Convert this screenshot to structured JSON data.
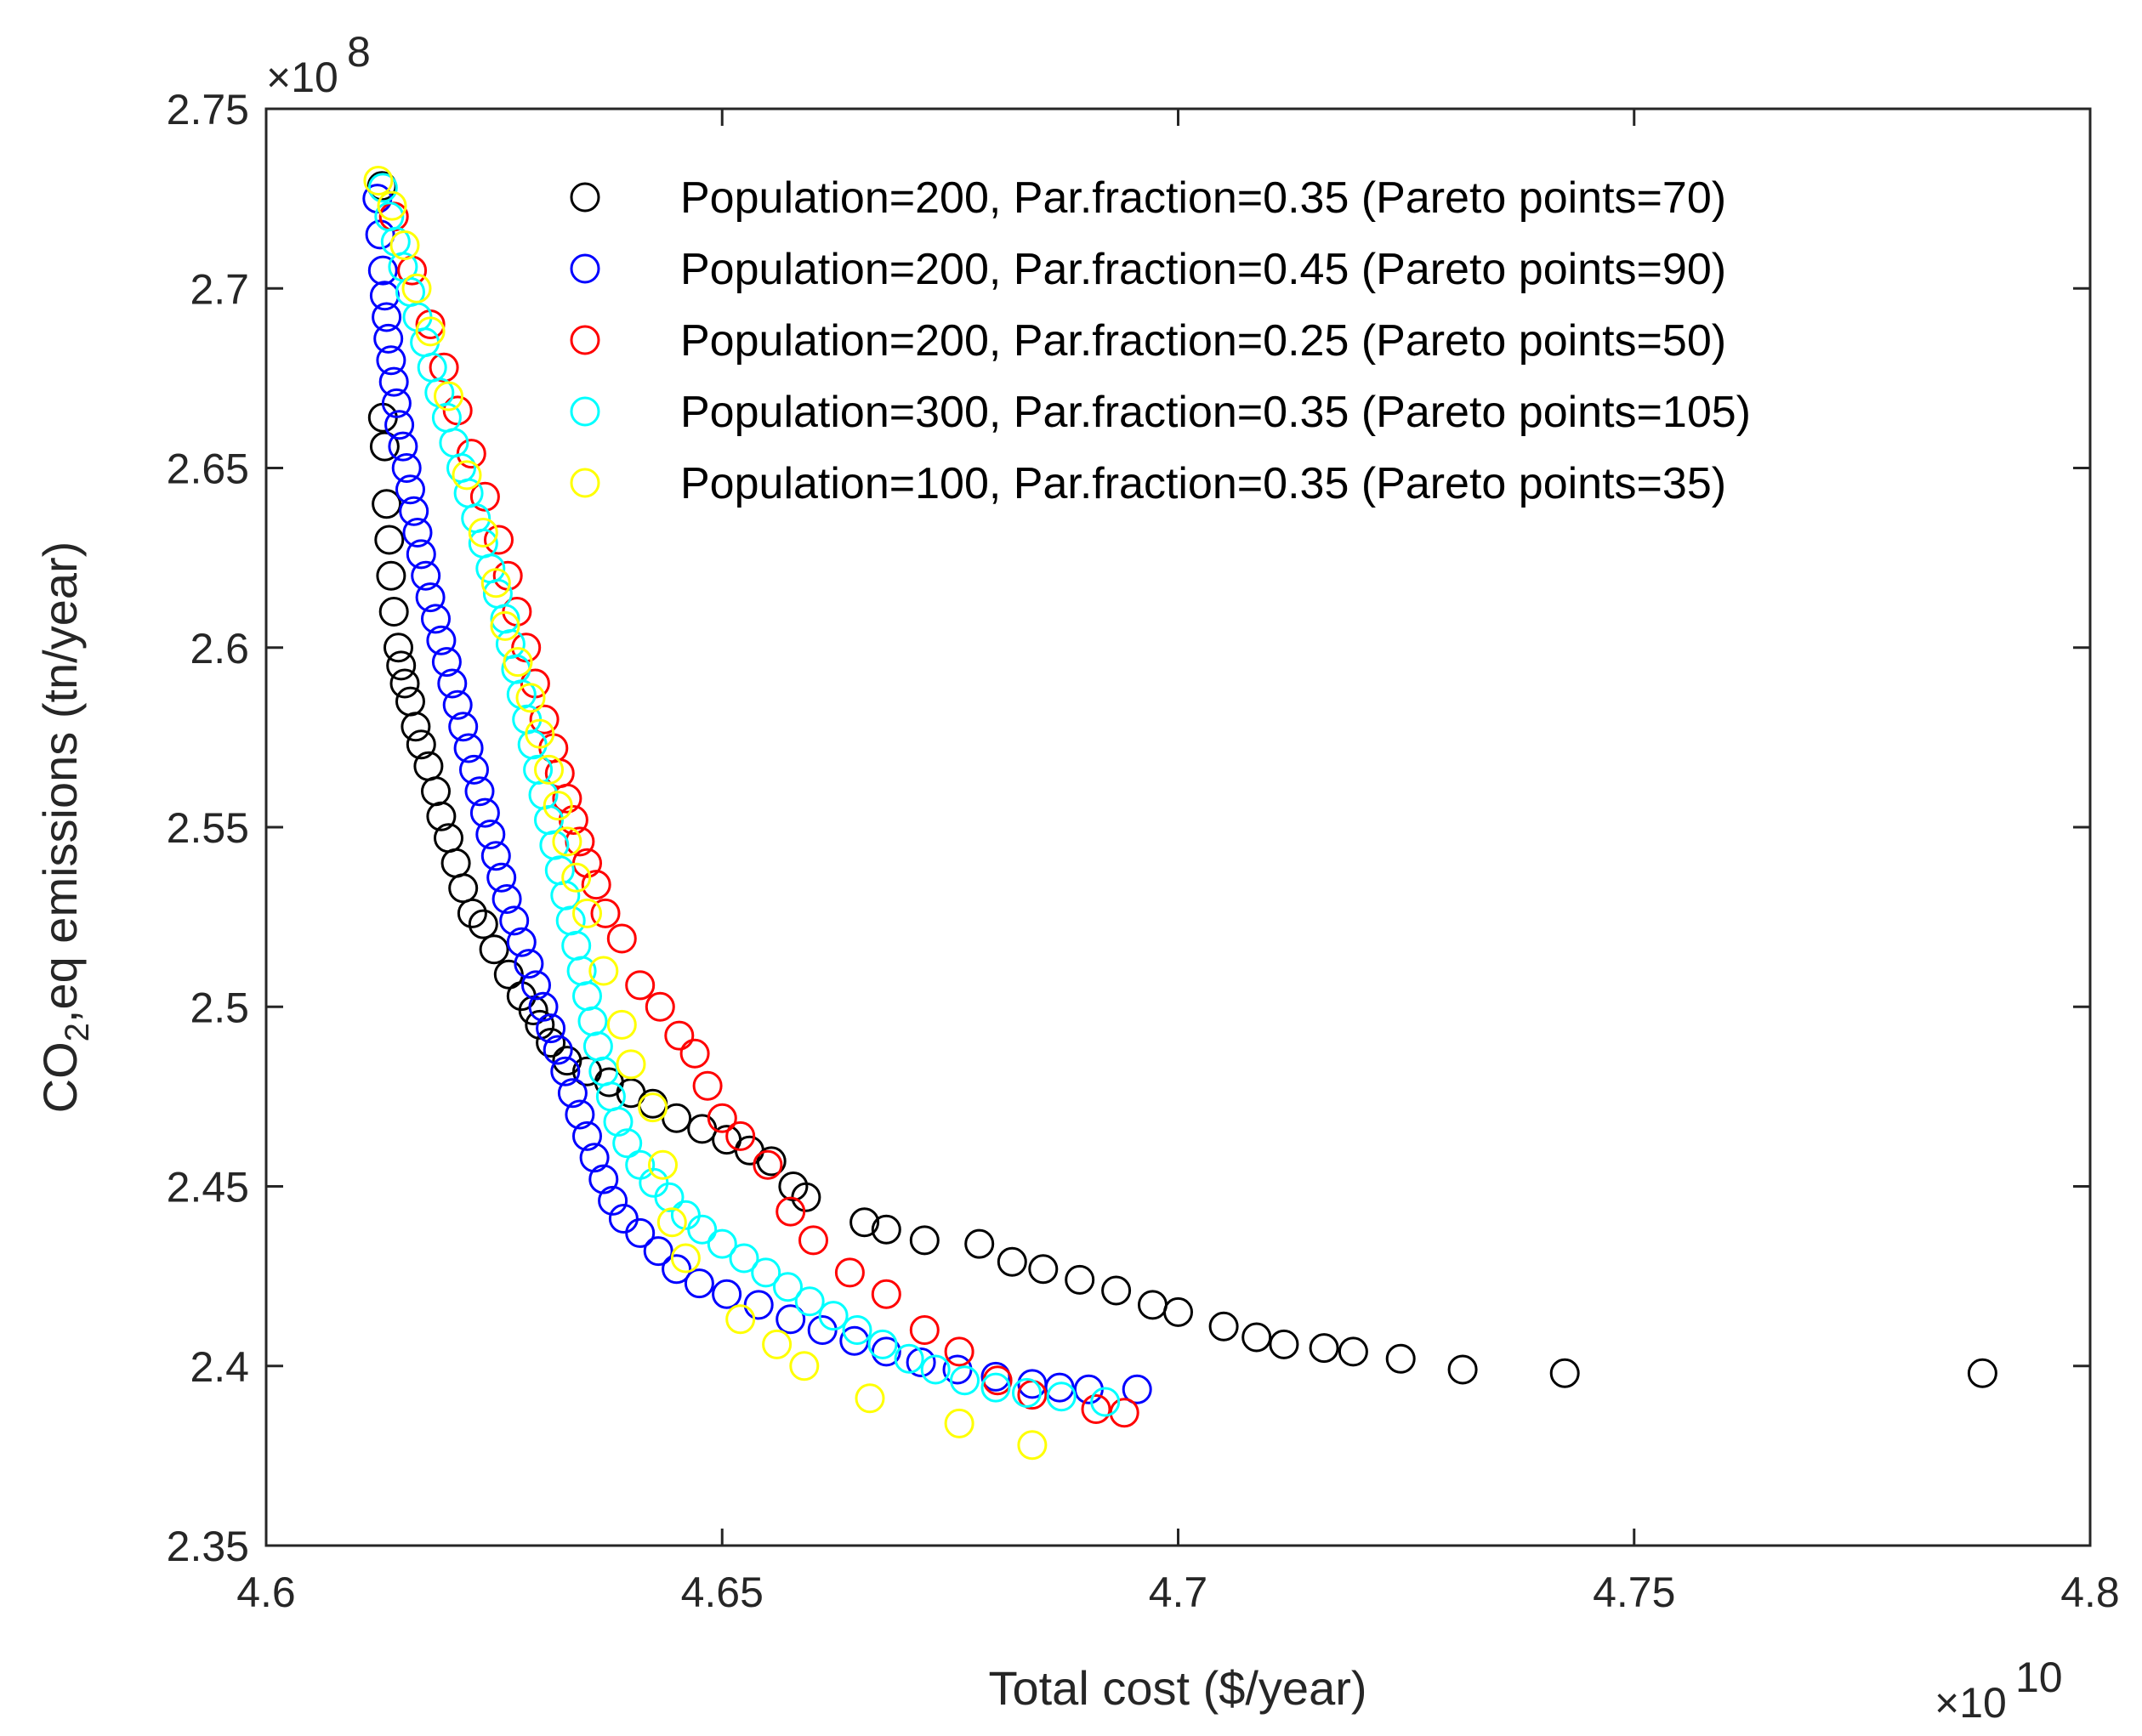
{
  "chart_data": {
    "type": "scatter",
    "title": "",
    "xlabel": "Total cost ($/year)",
    "ylabel_main": "CO",
    "ylabel_sub": "2",
    "ylabel_rest": ",eq emissions (tn/year)",
    "x_multiplier": {
      "base": "×10",
      "exp": "10"
    },
    "y_multiplier": {
      "base": "×10",
      "exp": "8"
    },
    "xlim": [
      4.6,
      4.8
    ],
    "ylim": [
      2.35,
      2.75
    ],
    "x_ticks": [
      4.6,
      4.65,
      4.7,
      4.75,
      4.8
    ],
    "x_tick_labels": [
      "4.6",
      "4.65",
      "4.7",
      "4.75",
      "4.8"
    ],
    "y_ticks": [
      2.35,
      2.4,
      2.45,
      2.5,
      2.55,
      2.6,
      2.65,
      2.7,
      2.75
    ],
    "y_tick_labels": [
      "2.35",
      "2.4",
      "2.45",
      "2.5",
      "2.55",
      "2.6",
      "2.65",
      "2.7",
      "2.75"
    ],
    "legend_position": "top-right",
    "series": [
      {
        "name": "Population=200, Par.fraction=0.35 (Pareto points=70)",
        "color": "#000000",
        "points": [
          [
            4.6127,
            2.7285
          ],
          [
            4.6128,
            2.664
          ],
          [
            4.613,
            2.656
          ],
          [
            4.6132,
            2.64
          ],
          [
            4.6135,
            2.63
          ],
          [
            4.6137,
            2.62
          ],
          [
            4.614,
            2.61
          ],
          [
            4.6145,
            2.6
          ],
          [
            4.6148,
            2.595
          ],
          [
            4.6152,
            2.59
          ],
          [
            4.6158,
            2.585
          ],
          [
            4.6164,
            2.578
          ],
          [
            4.617,
            2.573
          ],
          [
            4.6178,
            2.567
          ],
          [
            4.6186,
            2.56
          ],
          [
            4.6192,
            2.553
          ],
          [
            4.62,
            2.547
          ],
          [
            4.6208,
            2.54
          ],
          [
            4.6216,
            2.533
          ],
          [
            4.6226,
            2.526
          ],
          [
            4.6238,
            2.523
          ],
          [
            4.625,
            2.516
          ],
          [
            4.6266,
            2.509
          ],
          [
            4.628,
            2.503
          ],
          [
            4.6293,
            2.499
          ],
          [
            4.63,
            2.495
          ],
          [
            4.6312,
            2.49
          ],
          [
            4.633,
            2.485
          ],
          [
            4.6352,
            2.482
          ],
          [
            4.6376,
            2.479
          ],
          [
            4.64,
            2.476
          ],
          [
            4.6424,
            2.473
          ],
          [
            4.645,
            2.469
          ],
          [
            4.6478,
            2.466
          ],
          [
            4.6505,
            2.463
          ],
          [
            4.653,
            2.46
          ],
          [
            4.6554,
            2.457
          ],
          [
            4.6578,
            2.45
          ],
          [
            4.6592,
            2.447
          ],
          [
            4.6656,
            2.44
          ],
          [
            4.668,
            2.438
          ],
          [
            4.6722,
            2.435
          ],
          [
            4.6782,
            2.434
          ],
          [
            4.6818,
            2.429
          ],
          [
            4.6852,
            2.427
          ],
          [
            4.6892,
            2.424
          ],
          [
            4.6932,
            2.421
          ],
          [
            4.6972,
            2.417
          ],
          [
            4.7,
            2.415
          ],
          [
            4.705,
            2.411
          ],
          [
            4.7086,
            2.408
          ],
          [
            4.7116,
            2.406
          ],
          [
            4.716,
            2.405
          ],
          [
            4.7192,
            2.404
          ],
          [
            4.7244,
            2.402
          ],
          [
            4.7312,
            2.399
          ],
          [
            4.7424,
            2.398
          ],
          [
            4.7882,
            2.398
          ]
        ]
      },
      {
        "name": "Population=200, Par.fraction=0.45 (Pareto points=90)",
        "color": "#0000ff",
        "points": [
          [
            4.6122,
            2.725
          ],
          [
            4.6125,
            2.715
          ],
          [
            4.6128,
            2.705
          ],
          [
            4.613,
            2.698
          ],
          [
            4.6132,
            2.692
          ],
          [
            4.6134,
            2.686
          ],
          [
            4.6137,
            2.68
          ],
          [
            4.614,
            2.674
          ],
          [
            4.6143,
            2.668
          ],
          [
            4.6146,
            2.662
          ],
          [
            4.615,
            2.656
          ],
          [
            4.6154,
            2.65
          ],
          [
            4.6158,
            2.644
          ],
          [
            4.6162,
            2.638
          ],
          [
            4.6166,
            2.632
          ],
          [
            4.617,
            2.626
          ],
          [
            4.6175,
            2.62
          ],
          [
            4.618,
            2.614
          ],
          [
            4.6186,
            2.608
          ],
          [
            4.6192,
            2.602
          ],
          [
            4.6198,
            2.596
          ],
          [
            4.6204,
            2.59
          ],
          [
            4.621,
            2.584
          ],
          [
            4.6216,
            2.578
          ],
          [
            4.6222,
            2.572
          ],
          [
            4.6228,
            2.566
          ],
          [
            4.6234,
            2.56
          ],
          [
            4.624,
            2.554
          ],
          [
            4.6246,
            2.548
          ],
          [
            4.6252,
            2.542
          ],
          [
            4.6258,
            2.536
          ],
          [
            4.6264,
            2.53
          ],
          [
            4.6272,
            2.524
          ],
          [
            4.628,
            2.518
          ],
          [
            4.6288,
            2.512
          ],
          [
            4.6296,
            2.506
          ],
          [
            4.6304,
            2.5
          ],
          [
            4.6312,
            2.494
          ],
          [
            4.632,
            2.488
          ],
          [
            4.6328,
            2.482
          ],
          [
            4.6336,
            2.476
          ],
          [
            4.6344,
            2.47
          ],
          [
            4.6352,
            2.464
          ],
          [
            4.636,
            2.458
          ],
          [
            4.637,
            2.452
          ],
          [
            4.638,
            2.446
          ],
          [
            4.6392,
            2.441
          ],
          [
            4.641,
            2.437
          ],
          [
            4.643,
            2.432
          ],
          [
            4.645,
            2.427
          ],
          [
            4.6475,
            2.423
          ],
          [
            4.6505,
            2.42
          ],
          [
            4.654,
            2.417
          ],
          [
            4.6575,
            2.413
          ],
          [
            4.661,
            2.41
          ],
          [
            4.6645,
            2.407
          ],
          [
            4.668,
            2.404
          ],
          [
            4.6718,
            2.401
          ],
          [
            4.6758,
            2.399
          ],
          [
            4.68,
            2.397
          ],
          [
            4.684,
            2.395
          ],
          [
            4.687,
            2.394
          ],
          [
            4.6902,
            2.3935
          ],
          [
            4.6955,
            2.3935
          ]
        ]
      },
      {
        "name": "Population=200, Par.fraction=0.25 (Pareto points=50)",
        "color": "#ff0000",
        "points": [
          [
            4.614,
            2.72
          ],
          [
            4.616,
            2.705
          ],
          [
            4.618,
            2.69
          ],
          [
            4.6195,
            2.678
          ],
          [
            4.621,
            2.666
          ],
          [
            4.6225,
            2.654
          ],
          [
            4.624,
            2.642
          ],
          [
            4.6255,
            2.63
          ],
          [
            4.6265,
            2.62
          ],
          [
            4.6275,
            2.61
          ],
          [
            4.6285,
            2.6
          ],
          [
            4.6295,
            2.59
          ],
          [
            4.6305,
            2.58
          ],
          [
            4.6315,
            2.572
          ],
          [
            4.6322,
            2.565
          ],
          [
            4.633,
            2.558
          ],
          [
            4.6337,
            2.552
          ],
          [
            4.6344,
            2.546
          ],
          [
            4.6352,
            2.54
          ],
          [
            4.6362,
            2.534
          ],
          [
            4.6372,
            2.526
          ],
          [
            4.639,
            2.519
          ],
          [
            4.641,
            2.506
          ],
          [
            4.6432,
            2.5
          ],
          [
            4.6453,
            2.492
          ],
          [
            4.647,
            2.487
          ],
          [
            4.6484,
            2.478
          ],
          [
            4.65,
            2.469
          ],
          [
            4.652,
            2.464
          ],
          [
            4.655,
            2.456
          ],
          [
            4.6575,
            2.443
          ],
          [
            4.66,
            2.435
          ],
          [
            4.664,
            2.426
          ],
          [
            4.668,
            2.42
          ],
          [
            4.6722,
            2.41
          ],
          [
            4.676,
            2.404
          ],
          [
            4.6802,
            2.396
          ],
          [
            4.684,
            2.392
          ],
          [
            4.691,
            2.388
          ],
          [
            4.6941,
            2.387
          ]
        ]
      },
      {
        "name": "Population=300, Par.fraction=0.35 (Pareto points=105)",
        "color": "#00ffff",
        "points": [
          [
            4.6128,
            2.728
          ],
          [
            4.6135,
            2.72
          ],
          [
            4.6142,
            2.713
          ],
          [
            4.615,
            2.706
          ],
          [
            4.6158,
            2.699
          ],
          [
            4.6166,
            2.692
          ],
          [
            4.6174,
            2.685
          ],
          [
            4.6182,
            2.678
          ],
          [
            4.619,
            2.671
          ],
          [
            4.6198,
            2.664
          ],
          [
            4.6206,
            2.657
          ],
          [
            4.6214,
            2.65
          ],
          [
            4.6222,
            2.643
          ],
          [
            4.623,
            2.636
          ],
          [
            4.6238,
            2.629
          ],
          [
            4.6246,
            2.622
          ],
          [
            4.6254,
            2.615
          ],
          [
            4.6262,
            2.608
          ],
          [
            4.6268,
            2.601
          ],
          [
            4.6274,
            2.594
          ],
          [
            4.628,
            2.587
          ],
          [
            4.6286,
            2.58
          ],
          [
            4.6292,
            2.573
          ],
          [
            4.6298,
            2.566
          ],
          [
            4.6304,
            2.559
          ],
          [
            4.631,
            2.552
          ],
          [
            4.6316,
            2.545
          ],
          [
            4.6322,
            2.538
          ],
          [
            4.6328,
            2.531
          ],
          [
            4.6334,
            2.524
          ],
          [
            4.634,
            2.517
          ],
          [
            4.6346,
            2.51
          ],
          [
            4.6352,
            2.503
          ],
          [
            4.6358,
            2.496
          ],
          [
            4.6364,
            2.489
          ],
          [
            4.637,
            2.482
          ],
          [
            4.6378,
            2.475
          ],
          [
            4.6386,
            2.468
          ],
          [
            4.6396,
            2.462
          ],
          [
            4.641,
            2.456
          ],
          [
            4.6425,
            2.451
          ],
          [
            4.6442,
            2.447
          ],
          [
            4.646,
            2.442
          ],
          [
            4.6478,
            2.438
          ],
          [
            4.65,
            2.434
          ],
          [
            4.6524,
            2.43
          ],
          [
            4.6548,
            2.426
          ],
          [
            4.6572,
            2.422
          ],
          [
            4.6596,
            2.418
          ],
          [
            4.6622,
            2.414
          ],
          [
            4.6648,
            2.41
          ],
          [
            4.6676,
            2.406
          ],
          [
            4.6705,
            2.402
          ],
          [
            4.6734,
            2.399
          ],
          [
            4.6766,
            2.396
          ],
          [
            4.68,
            2.394
          ],
          [
            4.6834,
            2.3925
          ],
          [
            4.6872,
            2.3915
          ],
          [
            4.692,
            2.39
          ]
        ]
      },
      {
        "name": "Population=100, Par.fraction=0.35 (Pareto points=35)",
        "color": "#ffff00",
        "points": [
          [
            4.6123,
            2.73
          ],
          [
            4.6138,
            2.723
          ],
          [
            4.6152,
            2.712
          ],
          [
            4.6165,
            2.7
          ],
          [
            4.618,
            2.688
          ],
          [
            4.62,
            2.67
          ],
          [
            4.622,
            2.648
          ],
          [
            4.6238,
            2.632
          ],
          [
            4.6252,
            2.618
          ],
          [
            4.6262,
            2.606
          ],
          [
            4.6276,
            2.596
          ],
          [
            4.629,
            2.586
          ],
          [
            4.63,
            2.576
          ],
          [
            4.631,
            2.566
          ],
          [
            4.632,
            2.556
          ],
          [
            4.633,
            2.546
          ],
          [
            4.634,
            2.536
          ],
          [
            4.6352,
            2.526
          ],
          [
            4.637,
            2.51
          ],
          [
            4.639,
            2.495
          ],
          [
            4.64,
            2.484
          ],
          [
            4.6424,
            2.472
          ],
          [
            4.6435,
            2.456
          ],
          [
            4.6445,
            2.44
          ],
          [
            4.646,
            2.43
          ],
          [
            4.652,
            2.413
          ],
          [
            4.656,
            2.406
          ],
          [
            4.659,
            2.4
          ],
          [
            4.6662,
            2.391
          ],
          [
            4.676,
            2.384
          ],
          [
            4.684,
            2.378
          ]
        ]
      }
    ]
  }
}
